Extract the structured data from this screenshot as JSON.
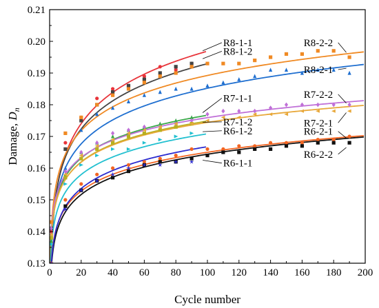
{
  "chart_data": {
    "type": "scatter",
    "xlabel": "Cycle number",
    "ylabel_main": "Damage, ",
    "ylabel_var": "D",
    "ylabel_sub": "n",
    "xlim": [
      0,
      200
    ],
    "ylim": [
      0.13,
      0.21
    ],
    "xticks": [
      "0",
      "20",
      "40",
      "60",
      "80",
      "100",
      "120",
      "140",
      "160",
      "180",
      "200"
    ],
    "yticks": [
      "0.13",
      "0.14",
      "0.15",
      "0.16",
      "0.17",
      "0.18",
      "0.19",
      "0.20",
      "0.21"
    ],
    "grid": false,
    "series": [
      {
        "name": "R8-1-1",
        "color": "#e8343a",
        "marker": "circle",
        "xmax": 100,
        "fit": {
          "a": 0.1315,
          "b": 0.0142
        },
        "x": [
          1,
          10,
          20,
          30,
          40,
          50,
          60,
          70,
          80,
          90
        ],
        "y": [
          0.14,
          0.168,
          0.176,
          0.182,
          0.185,
          0.186,
          0.189,
          0.192,
          0.191,
          0.193
        ]
      },
      {
        "name": "R8-1-2",
        "color": "#444444",
        "marker": "square",
        "xmax": 100,
        "fit": {
          "a": 0.134,
          "b": 0.0128
        },
        "x": [
          1,
          10,
          20,
          30,
          40,
          50,
          60,
          70,
          80,
          90
        ],
        "y": [
          0.141,
          0.166,
          0.175,
          0.18,
          0.184,
          0.186,
          0.188,
          0.19,
          0.192,
          0.193
        ]
      },
      {
        "name": "R8-2-2",
        "color": "#f08a24",
        "marker": "square",
        "xmax": 200,
        "fit": {
          "a": 0.1395,
          "b": 0.0108
        },
        "x": [
          1,
          10,
          20,
          30,
          40,
          50,
          60,
          70,
          80,
          90,
          100,
          110,
          120,
          130,
          140,
          150,
          160,
          170,
          180,
          190
        ],
        "y": [
          0.143,
          0.171,
          0.176,
          0.18,
          0.183,
          0.185,
          0.187,
          0.189,
          0.19,
          0.192,
          0.193,
          0.193,
          0.193,
          0.194,
          0.195,
          0.196,
          0.196,
          0.197,
          0.197,
          0.195
        ]
      },
      {
        "name": "R8-2-1",
        "color": "#1f6fd0",
        "marker": "triangle",
        "xmax": 200,
        "fit": {
          "a": 0.135,
          "b": 0.0109
        },
        "x": [
          1,
          10,
          20,
          30,
          40,
          50,
          60,
          70,
          80,
          90,
          100,
          110,
          120,
          130,
          140,
          150,
          160,
          170,
          180,
          190
        ],
        "y": [
          0.138,
          0.16,
          0.172,
          0.177,
          0.179,
          0.181,
          0.183,
          0.184,
          0.185,
          0.185,
          0.186,
          0.187,
          0.188,
          0.189,
          0.191,
          0.191,
          0.19,
          0.191,
          0.191,
          0.19
        ]
      },
      {
        "name": "R7-1-1",
        "color": "#3aa84a",
        "marker": "triangle",
        "xmax": 100,
        "fit": {
          "a": 0.138,
          "b": 0.0084
        },
        "x": [
          1,
          10,
          20,
          30,
          40,
          50,
          60,
          70,
          80,
          90
        ],
        "y": [
          0.137,
          0.158,
          0.165,
          0.168,
          0.17,
          0.172,
          0.173,
          0.174,
          0.175,
          0.176
        ]
      },
      {
        "name": "R7-2-2",
        "color": "#c070d8",
        "marker": "diamond",
        "xmax": 200,
        "fit": {
          "a": 0.14,
          "b": 0.0078
        },
        "x": [
          1,
          10,
          20,
          30,
          40,
          50,
          60,
          70,
          80,
          90,
          100,
          110,
          120,
          130,
          140,
          150,
          160,
          170,
          180,
          190
        ],
        "y": [
          0.141,
          0.159,
          0.165,
          0.168,
          0.171,
          0.172,
          0.173,
          0.173,
          0.174,
          0.175,
          0.177,
          0.178,
          0.178,
          0.178,
          0.179,
          0.18,
          0.18,
          0.18,
          0.18,
          0.18
        ]
      },
      {
        "name": "R7-1-2",
        "color": "#b8b020",
        "marker": "square",
        "xmax": 100,
        "fit": {
          "a": 0.138,
          "b": 0.008
        },
        "x": [
          1,
          10,
          20,
          30,
          40,
          50,
          60,
          70,
          80,
          90
        ],
        "y": [
          0.138,
          0.157,
          0.163,
          0.166,
          0.168,
          0.17,
          0.171,
          0.172,
          0.173,
          0.174
        ]
      },
      {
        "name": "R7-2-1",
        "color": "#e8a83a",
        "marker": "triangle-left",
        "xmax": 200,
        "fit": {
          "a": 0.1385,
          "b": 0.0078
        },
        "x": [
          1,
          10,
          20,
          30,
          40,
          50,
          60,
          70,
          80,
          90,
          100,
          110,
          120,
          130,
          140,
          150,
          160,
          170,
          180,
          190
        ],
        "y": [
          0.139,
          0.158,
          0.164,
          0.167,
          0.169,
          0.171,
          0.172,
          0.173,
          0.174,
          0.174,
          0.175,
          0.176,
          0.176,
          0.177,
          0.177,
          0.177,
          0.178,
          0.178,
          0.178,
          0.178
        ]
      },
      {
        "name": "R6-1-2",
        "color": "#22c0d0",
        "marker": "triangle-right",
        "xmax": 100,
        "fit": {
          "a": 0.134,
          "b": 0.008
        },
        "x": [
          1,
          10,
          20,
          30,
          40,
          50,
          60,
          70,
          80,
          90
        ],
        "y": [
          0.136,
          0.155,
          0.161,
          0.164,
          0.166,
          0.166,
          0.168,
          0.169,
          0.17,
          0.171
        ]
      },
      {
        "name": "R6-2-1",
        "color": "#f26522",
        "marker": "circle",
        "xmax": 200,
        "fit": {
          "a": 0.13,
          "b": 0.0076
        },
        "x": [
          1,
          10,
          20,
          30,
          40,
          50,
          60,
          70,
          80,
          90,
          100,
          110,
          120,
          130,
          140,
          150,
          160,
          170,
          180,
          190
        ],
        "y": [
          0.13,
          0.15,
          0.155,
          0.158,
          0.16,
          0.161,
          0.162,
          0.163,
          0.164,
          0.166,
          0.166,
          0.166,
          0.167,
          0.167,
          0.168,
          0.168,
          0.168,
          0.169,
          0.169,
          0.17
        ]
      },
      {
        "name": "R6-2-2",
        "color": "#111111",
        "marker": "square",
        "xmax": 200,
        "fit": {
          "a": 0.128,
          "b": 0.0079
        },
        "x": [
          1,
          10,
          20,
          30,
          40,
          50,
          60,
          70,
          80,
          90,
          100,
          110,
          120,
          130,
          140,
          150,
          160,
          170,
          180,
          190
        ],
        "y": [
          0.129,
          0.148,
          0.153,
          0.156,
          0.157,
          0.159,
          0.161,
          0.162,
          0.162,
          0.163,
          0.164,
          0.165,
          0.165,
          0.166,
          0.166,
          0.167,
          0.167,
          0.168,
          0.168,
          0.168
        ]
      },
      {
        "name": "R6-1-1",
        "color": "#2a2ad0",
        "marker": "star",
        "xmax": 100,
        "fit": {
          "a": 0.129,
          "b": 0.0082
        },
        "x": [
          1,
          10,
          20,
          30,
          40,
          50,
          60,
          70,
          80,
          90
        ],
        "y": [
          0.13,
          0.147,
          0.153,
          0.156,
          0.158,
          0.16,
          0.161,
          0.161,
          0.162,
          0.162
        ]
      }
    ],
    "annotations": [
      {
        "text": "R8-1-1",
        "x": 110,
        "y": 0.1985,
        "lx": 97,
        "ly": 0.197
      },
      {
        "text": "R8-1-2",
        "x": 110,
        "y": 0.1958,
        "lx": 97,
        "ly": 0.1945
      },
      {
        "text": "R8-2-2",
        "x": 161,
        "y": 0.1985,
        "lx": 188,
        "ly": 0.1965
      },
      {
        "text": "R8-2-1",
        "x": 161,
        "y": 0.19,
        "lx": 188,
        "ly": 0.1915
      },
      {
        "text": "R7-1-1",
        "x": 110,
        "y": 0.181,
        "lx": 97,
        "ly": 0.1775
      },
      {
        "text": "R7-2-2",
        "x": 161,
        "y": 0.1822,
        "lx": 188,
        "ly": 0.1805
      },
      {
        "text": "R7-1-2",
        "x": 110,
        "y": 0.1735,
        "lx": 97,
        "ly": 0.1745
      },
      {
        "text": "R6-1-2",
        "x": 110,
        "y": 0.1707,
        "lx": 97,
        "ly": 0.1715
      },
      {
        "text": "R7-2-1",
        "x": 161,
        "y": 0.1732,
        "lx": 188,
        "ly": 0.1775
      },
      {
        "text": "R6-2-1",
        "x": 161,
        "y": 0.1705,
        "lx": 188,
        "ly": 0.1695
      },
      {
        "text": "R6-1-1",
        "x": 110,
        "y": 0.1605,
        "lx": 97,
        "ly": 0.1625
      },
      {
        "text": "R6-2-2",
        "x": 161,
        "y": 0.1633,
        "lx": 188,
        "ly": 0.1665
      }
    ]
  }
}
